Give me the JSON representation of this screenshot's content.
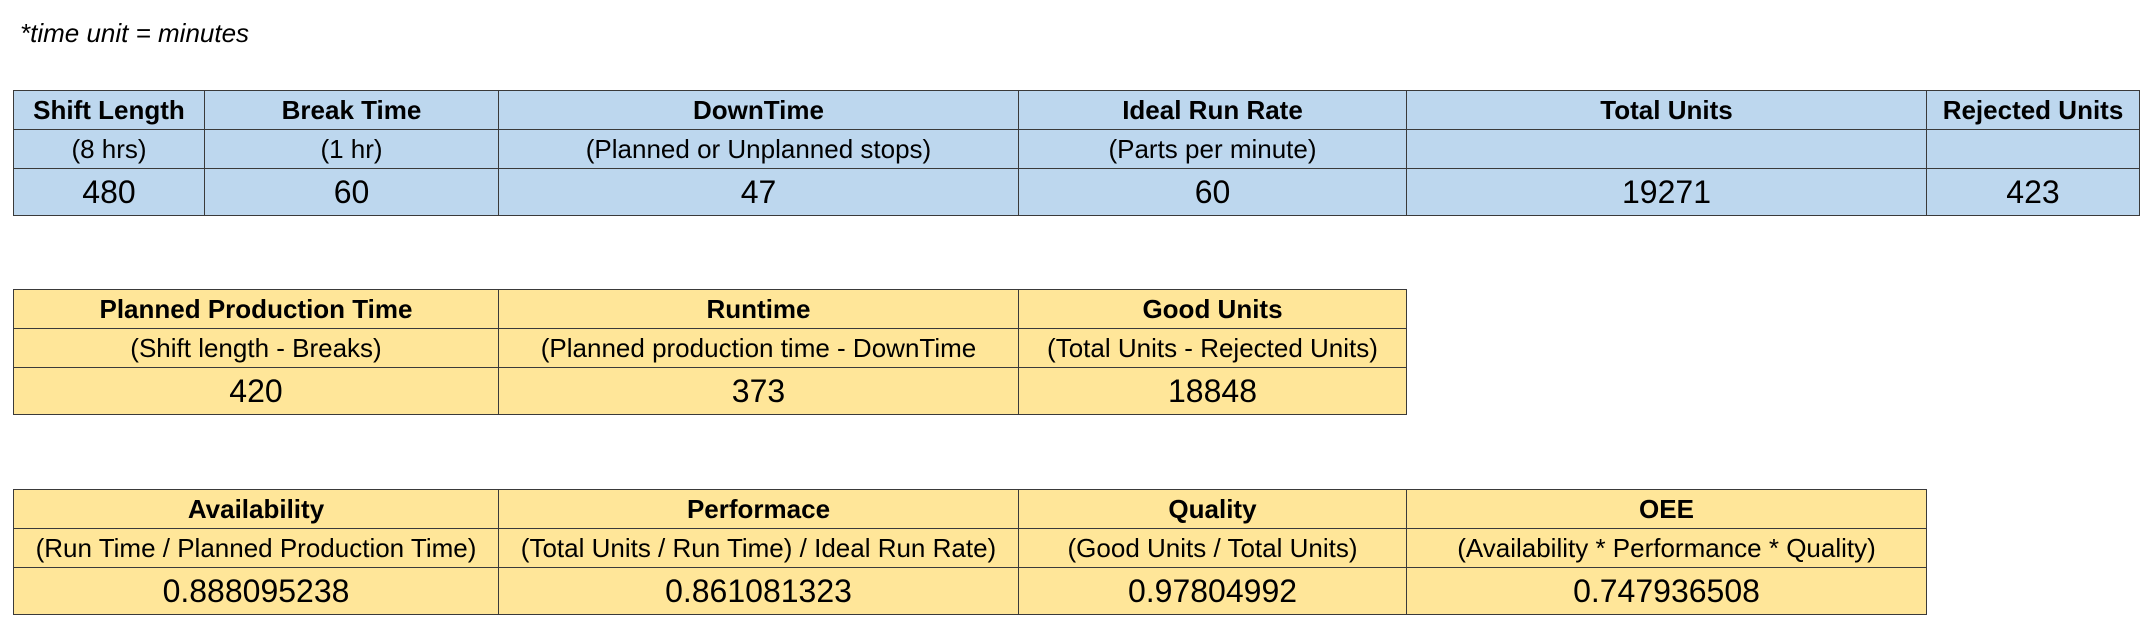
{
  "note": "*time unit = minutes",
  "inputs": {
    "columns": [
      {
        "header": "Shift Length",
        "sub": "(8 hrs)",
        "value": "480"
      },
      {
        "header": "Break Time",
        "sub": "(1 hr)",
        "value": "60"
      },
      {
        "header": "DownTime",
        "sub": "(Planned or Unplanned stops)",
        "value": "47"
      },
      {
        "header": "Ideal Run Rate",
        "sub": "(Parts per minute)",
        "value": "60"
      },
      {
        "header": "Total Units",
        "sub": "",
        "value": "19271"
      },
      {
        "header": "Rejected Units",
        "sub": "",
        "value": "423"
      }
    ]
  },
  "derived": {
    "columns": [
      {
        "header": "Planned Production Time",
        "sub": "(Shift length - Breaks)",
        "value": "420"
      },
      {
        "header": "Runtime",
        "sub": "(Planned production time - DownTime",
        "value": "373"
      },
      {
        "header": "Good Units",
        "sub": "(Total Units - Rejected Units)",
        "value": "18848"
      }
    ]
  },
  "metrics": {
    "columns": [
      {
        "header": "Availability",
        "sub": "(Run Time / Planned Production Time)",
        "value": "0.888095238"
      },
      {
        "header": "Performace",
        "sub": "(Total Units / Run Time) / Ideal Run Rate)",
        "value": "0.861081323"
      },
      {
        "header": "Quality",
        "sub": "(Good Units / Total Units)",
        "value": "0.97804992"
      },
      {
        "header": "OEE",
        "sub": "(Availability * Performance * Quality)",
        "value": "0.747936508"
      }
    ]
  }
}
